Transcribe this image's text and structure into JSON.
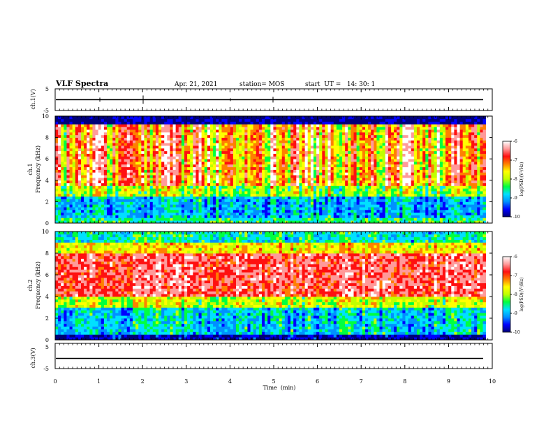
{
  "header": {
    "title": "VLF Spectra",
    "date": "Apr. 21, 2021",
    "station": "station= MOS",
    "start": "start  UT =   14: 30: 1"
  },
  "colors": {
    "scale": [
      "#000078",
      "#0000ff",
      "#0090ff",
      "#00e0ff",
      "#00ff40",
      "#c0ff00",
      "#ffff00",
      "#ff8000",
      "#ff1010",
      "#ff9a9a",
      "#ffffff"
    ],
    "trace": "#000000",
    "axes": "#000000"
  },
  "chart_data": [
    {
      "type": "line",
      "name": "ch1-waveform",
      "ylabel": "ch.1(V)",
      "ylim": [
        -5,
        5
      ],
      "yticks": [
        "5",
        "-5"
      ],
      "x_range_min": [
        0,
        9.85
      ],
      "y_approx": 0,
      "grid": false
    },
    {
      "type": "heatmap",
      "name": "ch1-spectrogram",
      "xlabel": "",
      "ylabel": "ch.1 Frequency (kHz)",
      "ylim": [
        0,
        10
      ],
      "yticks": [
        "0",
        "2",
        "4",
        "6",
        "8",
        "10"
      ],
      "x_range_min": [
        0,
        9.85
      ],
      "colorbar": {
        "label": "log(PSD)(V²/Hz)",
        "range": [
          -10,
          -6
        ],
        "ticks": [
          "-6",
          "-7",
          "-8",
          "-9",
          "-10"
        ]
      }
    },
    {
      "type": "heatmap",
      "name": "ch2-spectrogram",
      "xlabel": "",
      "ylabel": "ch.2 Frequency (kHz)",
      "ylim": [
        0,
        10
      ],
      "yticks": [
        "0",
        "2",
        "4",
        "6",
        "8",
        "10"
      ],
      "x_range_min": [
        0,
        9.85
      ],
      "colorbar": {
        "label": "log(PSD)(V²/Hz)",
        "range": [
          -10,
          -6
        ],
        "ticks": [
          "-6",
          "-7",
          "-8",
          "-9",
          "-10"
        ]
      }
    },
    {
      "type": "line",
      "name": "ch3-waveform",
      "ylabel": "ch.3(V)",
      "ylim": [
        -5,
        5
      ],
      "yticks": [
        "5",
        "-5"
      ],
      "x_range_min": [
        0,
        9.85
      ],
      "y_approx": -1,
      "grid": false
    }
  ],
  "xaxis": {
    "label": "Time  (min)",
    "range": [
      0,
      10
    ],
    "ticks": [
      "0",
      "1",
      "2",
      "3",
      "4",
      "5",
      "6",
      "7",
      "8",
      "9",
      "10"
    ]
  }
}
